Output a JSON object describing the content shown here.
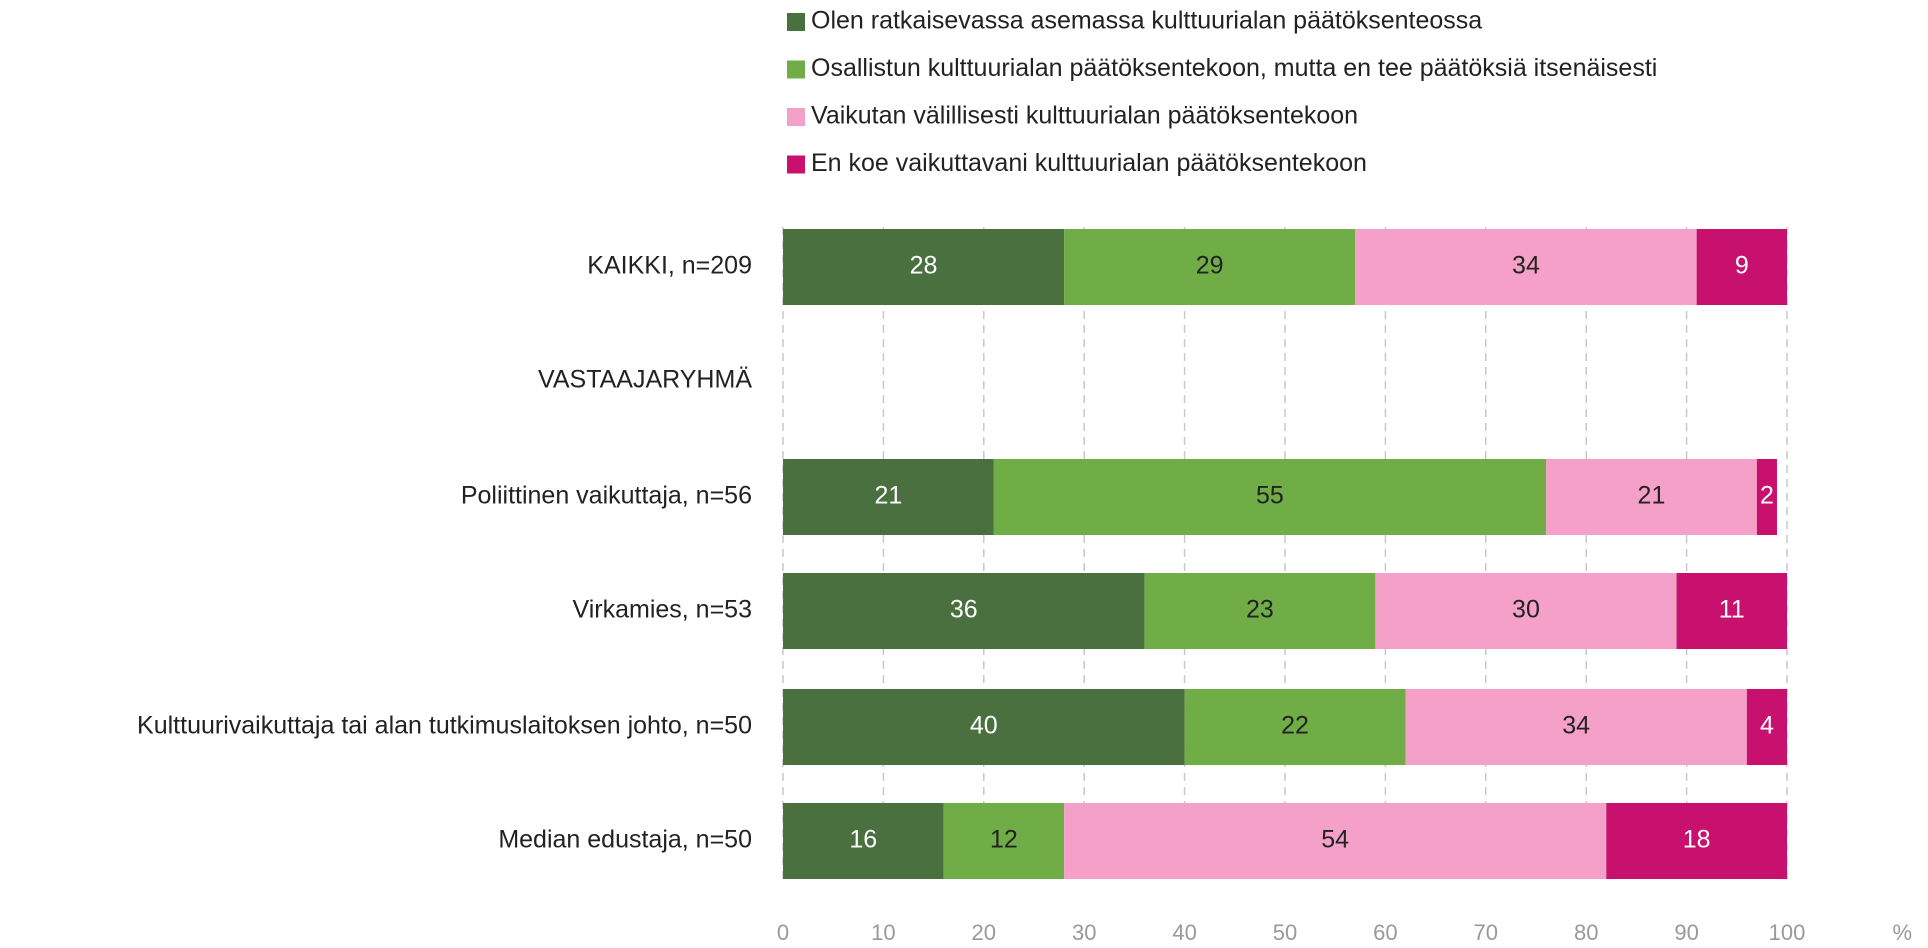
{
  "chart_data": {
    "type": "stacked-barh",
    "categories": [
      "KAIKKI, n=209",
      "VASTAAJARYHMÄ",
      "Poliittinen vaikuttaja, n=56",
      "Virkamies, n=53",
      "Kulttuurivaikuttaja tai alan tutkimuslaitoksen johto, n=50",
      "Median edustaja, n=50"
    ],
    "series": [
      {
        "name": "Olen ratkaisevassa asemassa kulttuurialan päätöksenteossa",
        "color": "#4a7040",
        "values": [
          28,
          null,
          21,
          36,
          40,
          16
        ]
      },
      {
        "name": "Osallistun kulttuurialan päätöksentekoon, mutta en tee päätöksiä itsenäisesti",
        "color": "#70ad47",
        "values": [
          29,
          null,
          55,
          23,
          22,
          12
        ]
      },
      {
        "name": "Vaikutan välillisesti kulttuurialan päätöksentekoon",
        "color": "#f4a0c8",
        "values": [
          34,
          null,
          21,
          30,
          34,
          54
        ]
      },
      {
        "name": "En koe vaikuttavani kulttuurialan päätöksentekoon",
        "color": "#c8106e",
        "values": [
          9,
          null,
          2,
          11,
          4,
          18
        ]
      }
    ],
    "xlim": [
      0,
      100
    ],
    "xticks": [
      0,
      10,
      20,
      30,
      40,
      50,
      60,
      70,
      80,
      90,
      100
    ],
    "x_label": "%",
    "grid": true,
    "legend": "top"
  }
}
